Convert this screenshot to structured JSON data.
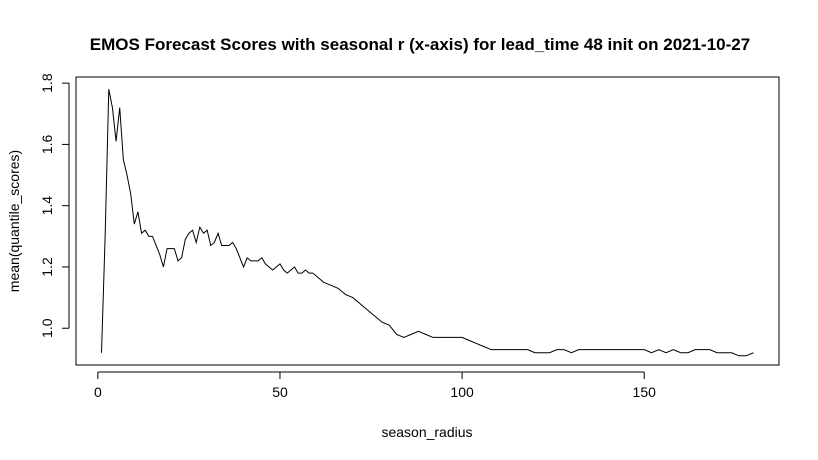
{
  "chart_data": {
    "type": "line",
    "title": "EMOS Forecast Scores with seasonal r (x-axis) for lead_time 48 init on 2021-10-27",
    "xlabel": "season_radius",
    "ylabel": "mean(quantile_scores)",
    "xlim": [
      -6,
      187
    ],
    "ylim": [
      0.88,
      1.82
    ],
    "xticks": [
      0,
      50,
      100,
      150
    ],
    "yticks": [
      1.0,
      1.2,
      1.4,
      1.6,
      1.8
    ],
    "xtick_labels": [
      "0",
      "50",
      "100",
      "150"
    ],
    "ytick_labels": [
      "1.0",
      "1.2",
      "1.4",
      "1.6",
      "1.8"
    ],
    "grid": false,
    "series": [
      {
        "color": "#000000",
        "x": [
          1,
          2,
          3,
          4,
          5,
          6,
          7,
          8,
          9,
          10,
          11,
          12,
          13,
          14,
          15,
          16,
          17,
          18,
          19,
          20,
          21,
          22,
          23,
          24,
          25,
          26,
          27,
          28,
          29,
          30,
          31,
          32,
          33,
          34,
          35,
          36,
          37,
          38,
          39,
          40,
          41,
          42,
          43,
          44,
          45,
          46,
          47,
          48,
          49,
          50,
          51,
          52,
          53,
          54,
          55,
          56,
          57,
          58,
          59,
          60,
          62,
          64,
          66,
          68,
          70,
          72,
          74,
          76,
          78,
          80,
          82,
          84,
          86,
          88,
          90,
          92,
          94,
          96,
          98,
          100,
          102,
          104,
          106,
          108,
          110,
          112,
          114,
          116,
          118,
          120,
          122,
          124,
          126,
          128,
          130,
          132,
          134,
          136,
          138,
          140,
          142,
          144,
          146,
          148,
          150,
          152,
          154,
          156,
          158,
          160,
          162,
          164,
          166,
          168,
          170,
          172,
          174,
          176,
          178,
          180
        ],
        "y": [
          0.92,
          1.3,
          1.78,
          1.72,
          1.61,
          1.72,
          1.55,
          1.5,
          1.44,
          1.34,
          1.38,
          1.31,
          1.32,
          1.3,
          1.3,
          1.27,
          1.24,
          1.2,
          1.26,
          1.26,
          1.26,
          1.22,
          1.23,
          1.29,
          1.31,
          1.32,
          1.28,
          1.33,
          1.31,
          1.32,
          1.27,
          1.28,
          1.31,
          1.27,
          1.27,
          1.27,
          1.28,
          1.26,
          1.23,
          1.2,
          1.23,
          1.22,
          1.22,
          1.22,
          1.23,
          1.21,
          1.2,
          1.19,
          1.2,
          1.21,
          1.19,
          1.18,
          1.19,
          1.2,
          1.18,
          1.18,
          1.19,
          1.18,
          1.18,
          1.17,
          1.15,
          1.14,
          1.13,
          1.11,
          1.1,
          1.08,
          1.06,
          1.04,
          1.02,
          1.01,
          0.98,
          0.97,
          0.98,
          0.99,
          0.98,
          0.97,
          0.97,
          0.97,
          0.97,
          0.97,
          0.96,
          0.95,
          0.94,
          0.93,
          0.93,
          0.93,
          0.93,
          0.93,
          0.93,
          0.92,
          0.92,
          0.92,
          0.93,
          0.93,
          0.92,
          0.93,
          0.93,
          0.93,
          0.93,
          0.93,
          0.93,
          0.93,
          0.93,
          0.93,
          0.93,
          0.92,
          0.93,
          0.92,
          0.93,
          0.92,
          0.92,
          0.93,
          0.93,
          0.93,
          0.92,
          0.92,
          0.92,
          0.91,
          0.91,
          0.92
        ]
      }
    ]
  }
}
